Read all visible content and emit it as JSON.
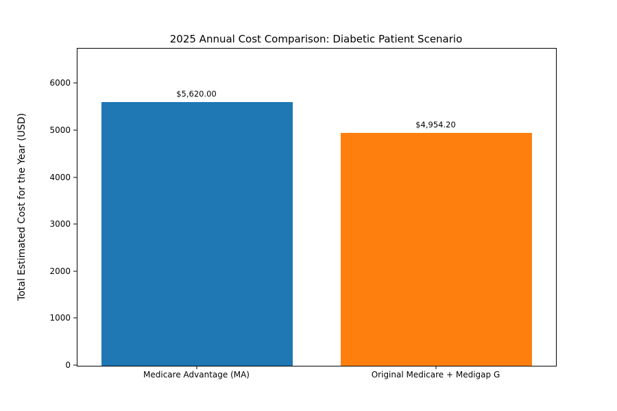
{
  "chart_data": {
    "type": "bar",
    "title": "2025 Annual Cost Comparison: Diabetic Patient Scenario",
    "xlabel": "",
    "ylabel": "Total Estimated Cost for the Year (USD)",
    "categories": [
      "Medicare Advantage (MA)",
      "Original Medicare + Medigap G"
    ],
    "values": [
      5620.0,
      4954.2
    ],
    "value_labels": [
      "$5,620.00",
      "$4,954.20"
    ],
    "bar_colors": [
      "#1f77b4",
      "#ff7f0e"
    ],
    "ylim": [
      0,
      6750
    ],
    "yticks": [
      0,
      1000,
      2000,
      3000,
      4000,
      5000,
      6000
    ],
    "grid": false,
    "legend": "none",
    "bar_width_fraction": 0.8
  }
}
